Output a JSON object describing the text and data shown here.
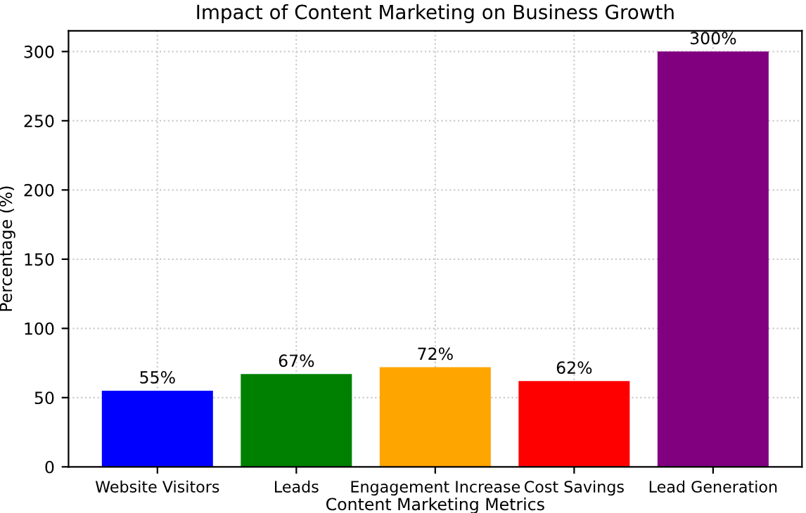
{
  "chart_data": {
    "type": "bar",
    "title": "Impact of Content Marketing on Business Growth",
    "xlabel": "Content Marketing Metrics",
    "ylabel": "Percentage (%)",
    "categories": [
      "Website Visitors",
      "Leads",
      "Engagement Increase",
      "Cost Savings",
      "Lead Generation"
    ],
    "values": [
      55,
      67,
      72,
      62,
      300
    ],
    "colors": [
      "#0000ff",
      "#008000",
      "#ffa500",
      "#ff0000",
      "#800080"
    ],
    "value_labels": [
      "55%",
      "67%",
      "72%",
      "62%",
      "300%"
    ],
    "ylim": [
      0,
      315
    ],
    "yticks": [
      0,
      50,
      100,
      150,
      200,
      250,
      300
    ],
    "grid": true
  }
}
